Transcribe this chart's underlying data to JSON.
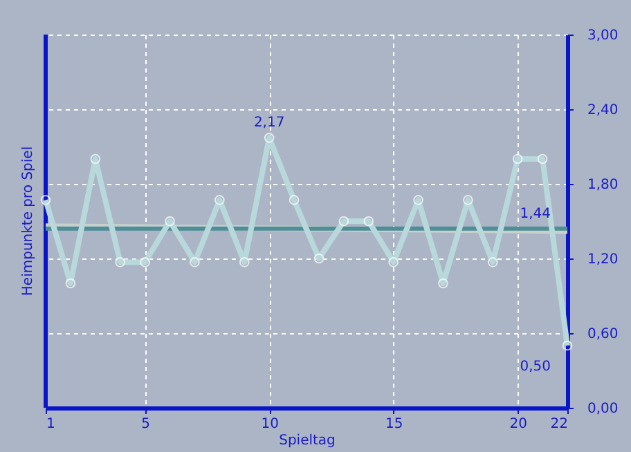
{
  "chart_data": {
    "type": "line",
    "xlabel": "Spieltag",
    "ylabel": "Heimpunkte pro Spiel",
    "xlim": [
      1,
      22
    ],
    "xticks": [
      1,
      5,
      10,
      15,
      20,
      22
    ],
    "ylim": [
      0,
      3.0
    ],
    "yticks": [
      {
        "value": 0,
        "label": "0,00"
      },
      {
        "value": 0.6,
        "label": "0,60"
      },
      {
        "value": 1.2,
        "label": "1,20"
      },
      {
        "value": 1.8,
        "label": "1,80"
      },
      {
        "value": 2.4,
        "label": "2,40"
      },
      {
        "value": 3.0,
        "label": "3,00"
      }
    ],
    "grid": true,
    "marker": "circle",
    "line_style": "solid",
    "series": [
      {
        "color": "#c9d0cc",
        "marker": "none",
        "x": [
          1,
          22
        ],
        "values": [
          1.46,
          1.42
        ]
      },
      {
        "color": "#4e8e96",
        "marker": "none",
        "x": [
          1,
          22
        ],
        "values": [
          1.44,
          1.44
        ],
        "value_labels": [
          null,
          "1,44"
        ]
      },
      {
        "color": "#b8d8dc",
        "x": [
          1,
          2,
          3,
          4,
          5,
          6,
          7,
          8,
          9,
          10,
          11,
          12,
          13,
          14,
          15,
          16,
          17,
          18,
          19,
          20,
          21,
          22
        ],
        "values": [
          1.67,
          1.0,
          2.0,
          1.17,
          1.17,
          1.5,
          1.17,
          1.67,
          1.17,
          2.17,
          1.67,
          1.2,
          1.5,
          1.5,
          1.17,
          1.67,
          1.0,
          1.67,
          1.17,
          2.0,
          2.0,
          0.5
        ],
        "value_labels": [
          null,
          null,
          null,
          null,
          null,
          null,
          null,
          null,
          null,
          "2,17",
          null,
          null,
          null,
          null,
          null,
          null,
          null,
          null,
          null,
          null,
          null,
          "0,50"
        ]
      }
    ]
  }
}
